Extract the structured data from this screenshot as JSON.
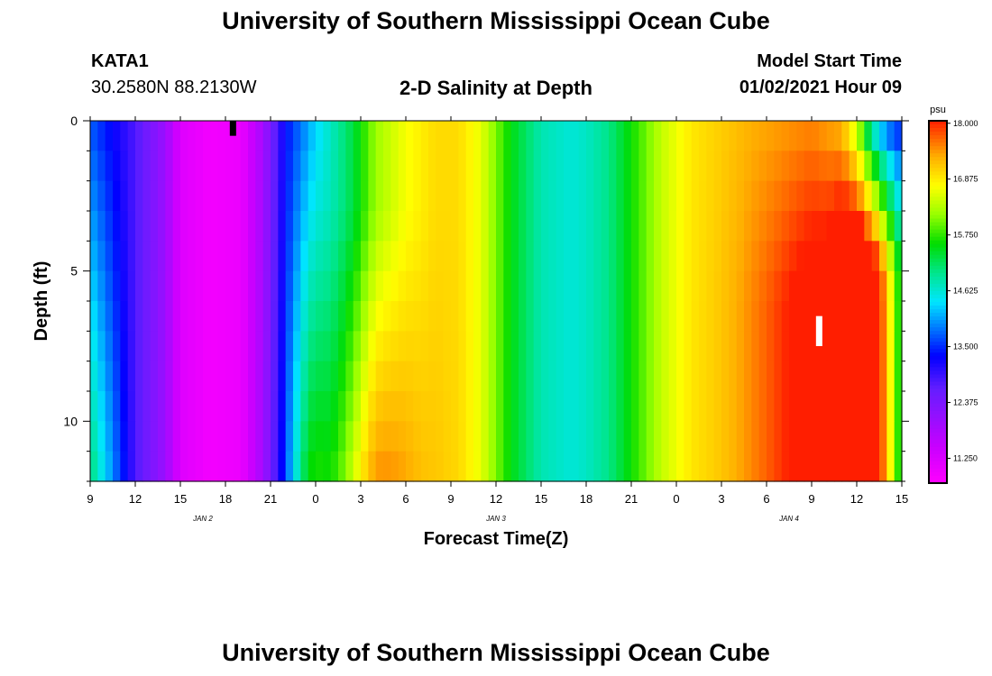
{
  "page": {
    "title_top": "University of Southern Mississippi Ocean Cube",
    "title_bottom": "University of Southern Mississippi Ocean Cube",
    "station_id": "KATA1",
    "station_coords": "30.2580N 88.2130W",
    "plot_title": "2-D Salinity at Depth",
    "model_start_label": "Model Start Time",
    "model_start_value": "01/02/2021 Hour 09"
  },
  "chart_data": {
    "type": "heatmap",
    "title": "2-D Salinity at Depth",
    "xlabel": "Forecast Time(Z)",
    "ylabel": "Depth (ft)",
    "x_range_hours": [
      0,
      54
    ],
    "y_range_ft": [
      0,
      12
    ],
    "y_inverted": true,
    "x_ticks": [
      {
        "h": 0,
        "label": "9"
      },
      {
        "h": 3,
        "label": "12"
      },
      {
        "h": 6,
        "label": "15"
      },
      {
        "h": 9,
        "label": "18"
      },
      {
        "h": 12,
        "label": "21"
      },
      {
        "h": 15,
        "label": "0"
      },
      {
        "h": 18,
        "label": "3"
      },
      {
        "h": 21,
        "label": "6"
      },
      {
        "h": 24,
        "label": "9"
      },
      {
        "h": 27,
        "label": "12"
      },
      {
        "h": 30,
        "label": "15"
      },
      {
        "h": 33,
        "label": "18"
      },
      {
        "h": 36,
        "label": "21"
      },
      {
        "h": 39,
        "label": "0"
      },
      {
        "h": 42,
        "label": "3"
      },
      {
        "h": 45,
        "label": "6"
      },
      {
        "h": 48,
        "label": "9"
      },
      {
        "h": 51,
        "label": "12"
      },
      {
        "h": 54,
        "label": "15"
      }
    ],
    "date_labels": [
      {
        "h": 7.5,
        "label": "JAN 2"
      },
      {
        "h": 27,
        "label": "JAN 3"
      },
      {
        "h": 46.5,
        "label": "JAN 4"
      }
    ],
    "y_ticks": [
      {
        "v": 0,
        "label": "0"
      },
      {
        "v": 5,
        "label": "5"
      },
      {
        "v": 10,
        "label": "10"
      }
    ],
    "y_minor_ticks": [
      1,
      2,
      3,
      4,
      6,
      7,
      8,
      9,
      11,
      12
    ],
    "colorbar": {
      "unit": "psu",
      "min": 10.75,
      "max": 18.05,
      "labels": [
        "18.000",
        "16.875",
        "15.750",
        "14.625",
        "13.500",
        "12.375",
        "11.250"
      ]
    },
    "surface_profile": [
      [
        0,
        13.7
      ],
      [
        1,
        13.4
      ],
      [
        2,
        13.1
      ],
      [
        3,
        12.8
      ],
      [
        4,
        12.4
      ],
      [
        5,
        12.0
      ],
      [
        6,
        11.2
      ],
      [
        8,
        10.9
      ],
      [
        10,
        11.0
      ],
      [
        11.5,
        11.9
      ],
      [
        12.5,
        12.9
      ],
      [
        13.3,
        13.5
      ],
      [
        14,
        13.8
      ],
      [
        15,
        14.3
      ],
      [
        16.5,
        14.9
      ],
      [
        17.5,
        15.3
      ],
      [
        18,
        15.6
      ],
      [
        19,
        16.2
      ],
      [
        21,
        16.7
      ],
      [
        23,
        17.0
      ],
      [
        24.5,
        17.0
      ],
      [
        26,
        16.6
      ],
      [
        28,
        15.5
      ],
      [
        30,
        14.8
      ],
      [
        32,
        14.6
      ],
      [
        33,
        14.7
      ],
      [
        34.5,
        15.0
      ],
      [
        36,
        15.6
      ],
      [
        38,
        16.4
      ],
      [
        40,
        16.9
      ],
      [
        42,
        17.1
      ],
      [
        44,
        17.3
      ],
      [
        46,
        17.4
      ],
      [
        48,
        17.5
      ],
      [
        50,
        17.2
      ],
      [
        51,
        16.2
      ],
      [
        52,
        14.5
      ],
      [
        53,
        13.6
      ],
      [
        54,
        13.3
      ]
    ],
    "markers": [
      {
        "h": 9.5,
        "depth_from": 0,
        "depth_to": 0.5,
        "color": "#000000"
      },
      {
        "h": 48.5,
        "depth_from": 6.5,
        "depth_to": 7.5,
        "color": "#ffffff"
      }
    ]
  }
}
